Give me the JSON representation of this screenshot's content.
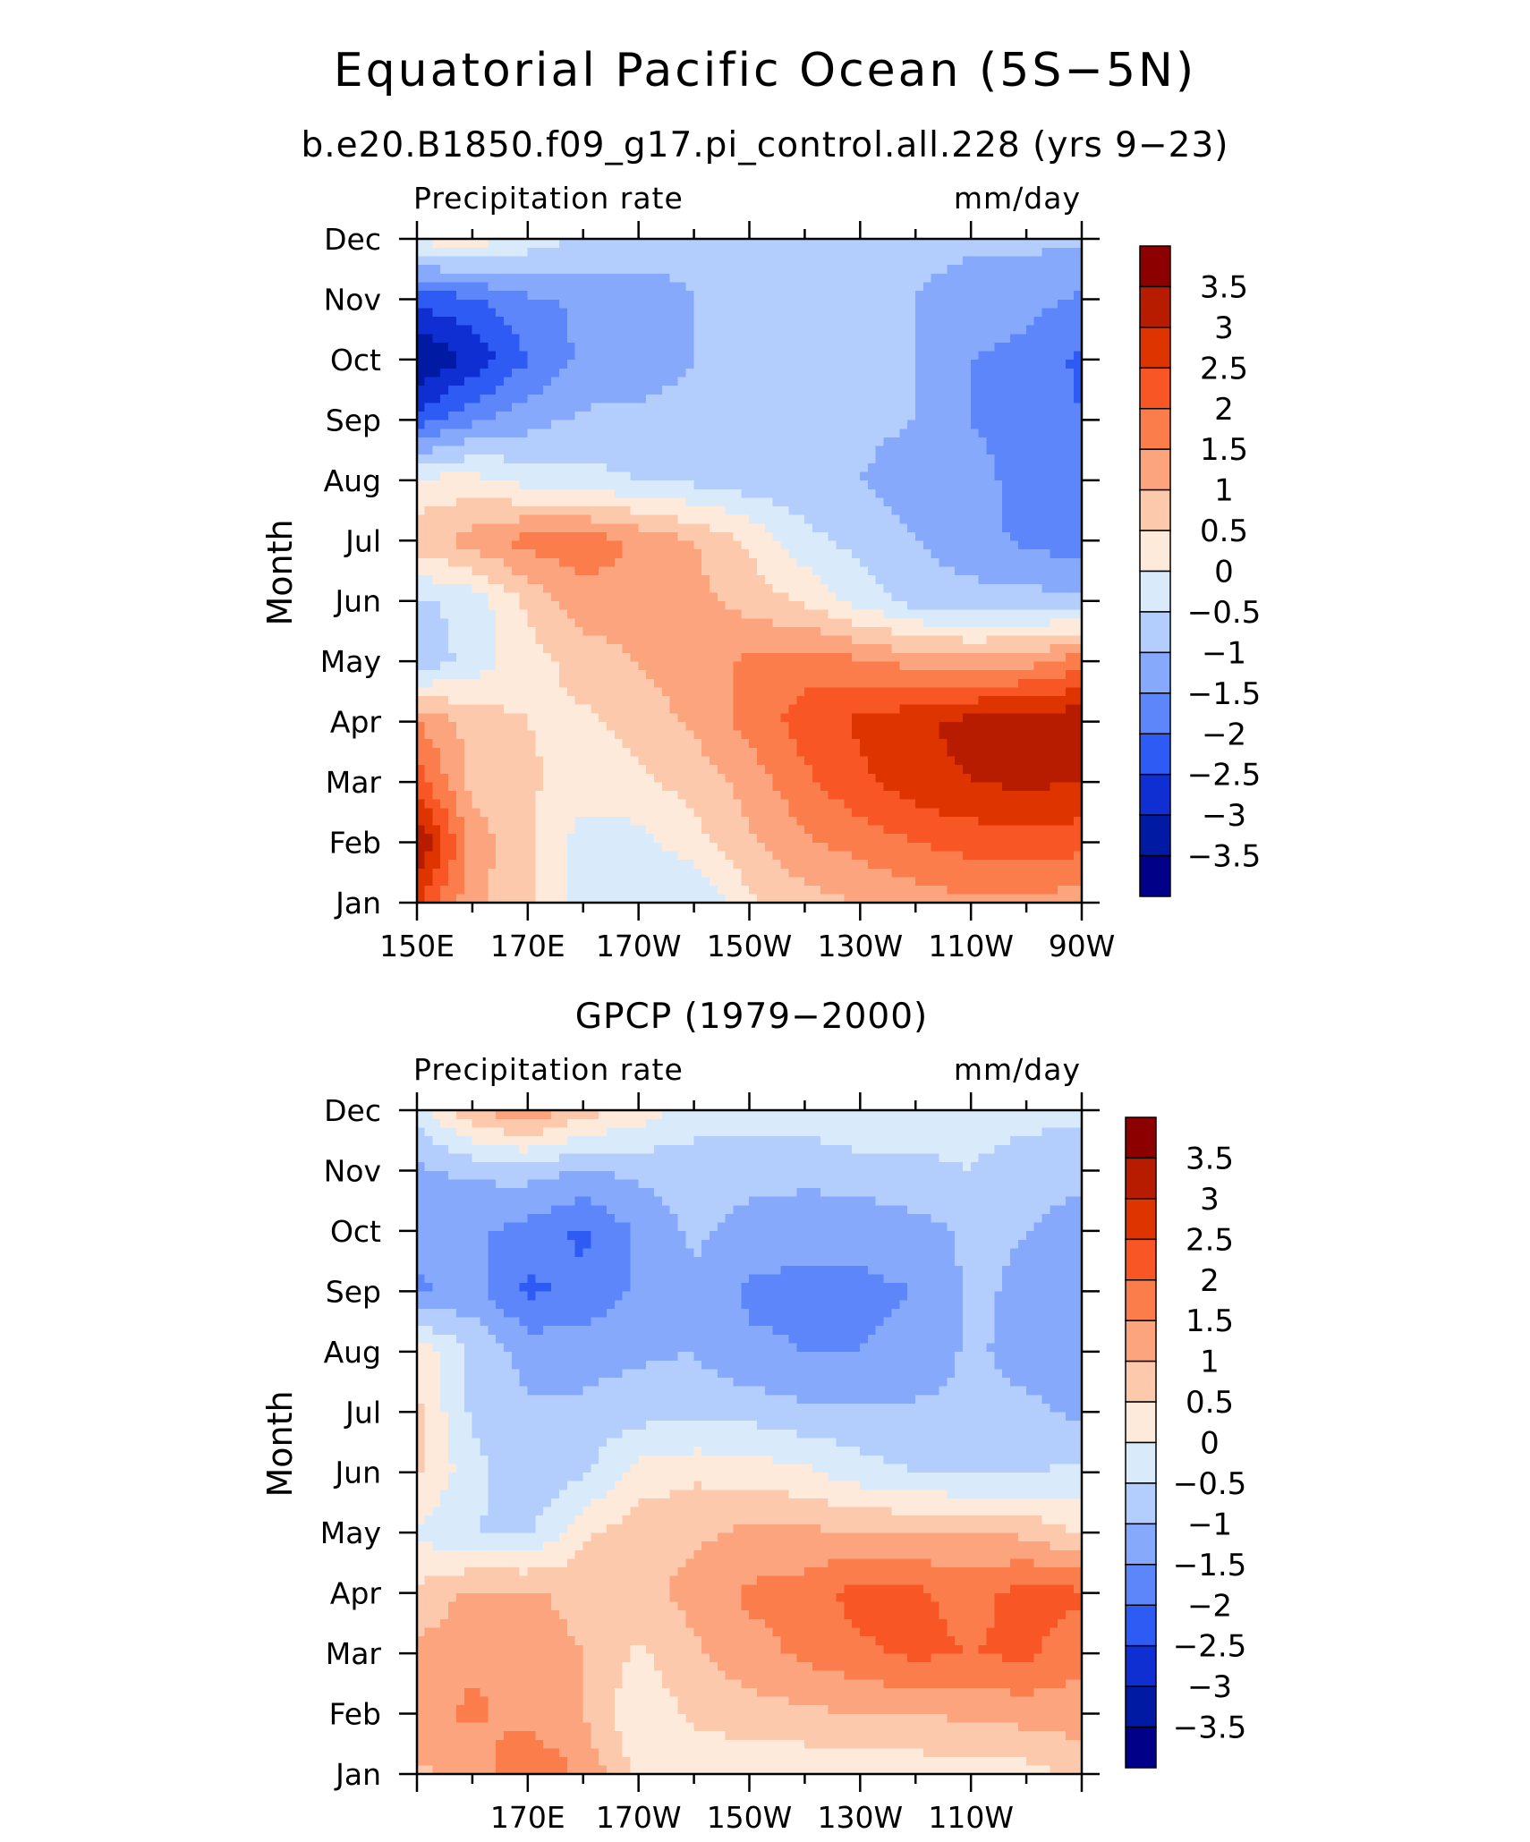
{
  "title": "Equatorial Pacific Ocean (5S−5N)",
  "colorbar": {
    "levels": [
      "3.5",
      "3",
      "2.5",
      "2",
      "1.5",
      "1",
      "0.5",
      "0",
      "−0.5",
      "−1",
      "−1.5",
      "−2",
      "−2.5",
      "−3",
      "−3.5"
    ],
    "colors": [
      "#8c0000",
      "#b81c00",
      "#dd3400",
      "#f95626",
      "#fa7d4b",
      "#fba47e",
      "#fcc9ad",
      "#feeadb",
      "#d9eafb",
      "#b3cefc",
      "#86a9fc",
      "#5c86fa",
      "#2f5bf5",
      "#0f2fd2",
      "#001aa3",
      "#000088"
    ]
  },
  "chart_data": [
    {
      "type": "heatmap",
      "subtitle": "b.e20.B1850.f09_g17.pi_control.all.228 (yrs 9−23)",
      "left_label": "Precipitation rate",
      "right_label": "mm/day",
      "ylabel": "Month",
      "xticks": [
        "150E",
        "170E",
        "170W",
        "150W",
        "130W",
        "110W",
        "90W"
      ],
      "yticks": [
        "Jan",
        "Feb",
        "Mar",
        "Apr",
        "May",
        "Jun",
        "Jul",
        "Aug",
        "Sep",
        "Oct",
        "Nov",
        "Dec"
      ],
      "xlim": [
        "150E",
        "90W"
      ],
      "x": [
        150,
        160,
        170,
        180,
        190,
        200,
        210,
        220,
        230,
        240,
        250,
        260,
        270
      ],
      "y": [
        "Jan",
        "Feb",
        "Mar",
        "Apr",
        "May",
        "Jun",
        "Jul",
        "Aug",
        "Sep",
        "Oct",
        "Nov",
        "Dec"
      ],
      "values": [
        [
          2.6,
          1.1,
          0.6,
          -0.3,
          -0.4,
          -0.5,
          0.4,
          0.8,
          1.0,
          1.2,
          1.4,
          1.4,
          1.2
        ],
        [
          3.6,
          1.3,
          0.6,
          -0.2,
          -0.2,
          0.3,
          0.9,
          1.4,
          1.7,
          2.0,
          2.2,
          2.3,
          2.2
        ],
        [
          2.3,
          0.8,
          0.6,
          0.2,
          0.4,
          0.7,
          1.2,
          1.9,
          2.4,
          2.8,
          3.0,
          3.1,
          3.0
        ],
        [
          1.5,
          0.8,
          0.5,
          0.4,
          0.7,
          1.1,
          1.7,
          2.2,
          2.6,
          2.9,
          3.2,
          3.3,
          3.4
        ],
        [
          -0.9,
          -0.3,
          0.3,
          0.7,
          1.0,
          1.3,
          1.6,
          1.8,
          1.6,
          1.3,
          1.2,
          1.3,
          1.8
        ],
        [
          -0.6,
          -0.3,
          0.6,
          1.3,
          1.4,
          1.2,
          0.8,
          0.4,
          -0.2,
          -0.7,
          -0.8,
          -0.8,
          -0.9
        ],
        [
          0.8,
          1.2,
          1.7,
          1.8,
          1.4,
          1.0,
          0.4,
          -0.3,
          -0.7,
          -1.0,
          -1.3,
          -1.6,
          -1.8
        ],
        [
          0.1,
          0.2,
          -0.2,
          -0.3,
          -0.5,
          -0.6,
          -0.8,
          -0.9,
          -1.0,
          -1.2,
          -1.4,
          -1.6,
          -1.8
        ],
        [
          -2.3,
          -1.6,
          -1.2,
          -0.9,
          -0.9,
          -0.9,
          -0.9,
          -0.9,
          -0.9,
          -1.0,
          -1.5,
          -1.6,
          -2.0
        ],
        [
          -3.6,
          -2.9,
          -2.0,
          -1.4,
          -1.2,
          -1.0,
          -0.9,
          -0.9,
          -0.9,
          -1.0,
          -1.5,
          -1.7,
          -2.1
        ],
        [
          -2.3,
          -2.1,
          -1.6,
          -1.4,
          -1.2,
          -1.0,
          -0.9,
          -0.9,
          -0.9,
          -1.0,
          -1.2,
          -1.3,
          -1.6
        ],
        [
          0.1,
          0.3,
          -0.2,
          -0.6,
          -0.8,
          -0.9,
          -0.9,
          -0.9,
          -0.9,
          -0.9,
          -0.9,
          -0.9,
          -0.9
        ]
      ]
    },
    {
      "type": "heatmap",
      "subtitle": "GPCP (1979−2000)",
      "left_label": "Precipitation rate",
      "right_label": "mm/day",
      "ylabel": "Month",
      "xticks": [
        "170E",
        "170W",
        "150W",
        "130W",
        "110W"
      ],
      "yticks": [
        "Jan",
        "Feb",
        "Mar",
        "Apr",
        "May",
        "Jun",
        "Jul",
        "Aug",
        "Sep",
        "Oct",
        "Nov",
        "Dec"
      ],
      "xlim": [
        "150E",
        "90W"
      ],
      "x": [
        150,
        160,
        170,
        180,
        190,
        200,
        210,
        220,
        230,
        240,
        250,
        260,
        270
      ],
      "y": [
        "Jan",
        "Feb",
        "Mar",
        "Apr",
        "May",
        "Jun",
        "Jul",
        "Aug",
        "Sep",
        "Oct",
        "Nov",
        "Dec"
      ],
      "values": [
        [
          0.9,
          1.1,
          2.0,
          1.4,
          0.4,
          0.1,
          0.1,
          0.1,
          0.2,
          0.2,
          0.3,
          0.3,
          0.6
        ],
        [
          1.3,
          1.6,
          1.3,
          1.0,
          0.1,
          0.6,
          0.8,
          0.9,
          1.0,
          1.0,
          1.1,
          1.2,
          1.3
        ],
        [
          1.1,
          1.4,
          1.3,
          1.0,
          0.4,
          0.9,
          1.3,
          1.6,
          1.9,
          2.1,
          2.0,
          2.1,
          1.6
        ],
        [
          0.6,
          1.1,
          1.1,
          0.8,
          0.8,
          1.2,
          1.6,
          1.7,
          2.2,
          2.1,
          1.8,
          2.2,
          2.1
        ],
        [
          -0.1,
          -0.5,
          -0.6,
          0.4,
          0.8,
          0.9,
          1.1,
          1.1,
          1.0,
          1.0,
          1.0,
          0.9,
          0.4
        ],
        [
          0.6,
          -0.3,
          -1.0,
          -0.6,
          0.2,
          0.4,
          0.3,
          0.1,
          -0.3,
          -0.5,
          -0.6,
          -0.5,
          -0.4
        ],
        [
          0.6,
          -0.6,
          -0.9,
          -0.9,
          -0.7,
          -0.7,
          -0.7,
          -0.9,
          -0.9,
          -0.9,
          -0.9,
          -0.9,
          -1.1
        ],
        [
          0.4,
          -0.6,
          -1.2,
          -1.2,
          -1.1,
          -1.0,
          -1.4,
          -1.5,
          -1.5,
          -1.4,
          -0.9,
          -1.2,
          -1.0
        ],
        [
          -1.6,
          -1.3,
          -2.1,
          -1.9,
          -1.4,
          -1.1,
          -1.6,
          -1.6,
          -1.6,
          -1.5,
          -0.9,
          -1.1,
          -1.1
        ],
        [
          -1.3,
          -1.4,
          -1.7,
          -2.1,
          -1.4,
          -0.9,
          -1.2,
          -1.4,
          -1.4,
          -1.2,
          -0.9,
          -1.0,
          -1.2
        ],
        [
          -1.1,
          -0.9,
          -0.8,
          -1.0,
          -0.9,
          -0.8,
          -0.8,
          -0.8,
          -0.7,
          -0.6,
          -0.5,
          -0.8,
          -0.9
        ],
        [
          -0.3,
          0.9,
          1.5,
          0.7,
          0.3,
          -0.2,
          -0.3,
          -0.3,
          -0.1,
          -0.3,
          -0.3,
          -0.3,
          -0.4
        ]
      ]
    }
  ]
}
